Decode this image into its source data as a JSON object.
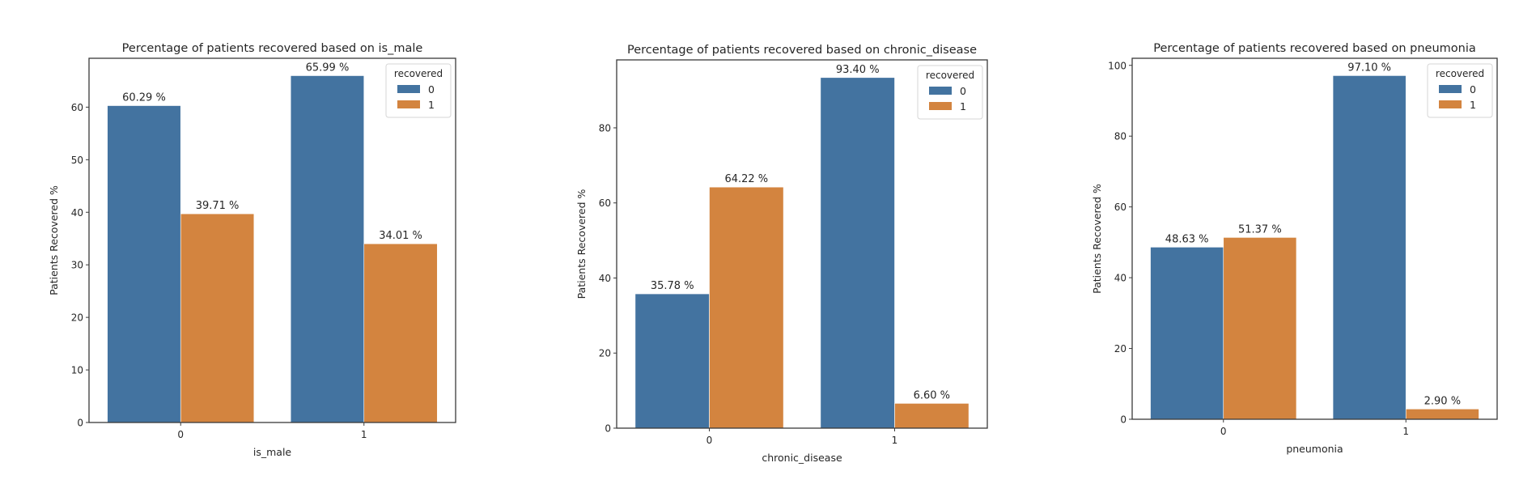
{
  "colors": {
    "series_0": "#4373a0",
    "series_1": "#d3843f",
    "axis": "#3a3a3a",
    "text": "#262626",
    "background": "#ffffff"
  },
  "chart_data": [
    {
      "type": "bar",
      "title": "Percentage of patients recovered based on is_male",
      "xlabel": "is_male",
      "ylabel": "Patients Recovered %",
      "categories": [
        "0",
        "1"
      ],
      "ylim": [
        0,
        69.3
      ],
      "yticks": [
        0,
        10,
        20,
        30,
        40,
        50,
        60
      ],
      "legend": {
        "title": "recovered",
        "position": "top-right"
      },
      "grid": false,
      "series": [
        {
          "name": "0",
          "values": [
            60.29,
            65.99
          ],
          "labels": [
            "60.29 %",
            "65.99 %"
          ]
        },
        {
          "name": "1",
          "values": [
            39.71,
            34.01
          ],
          "labels": [
            "39.71 %",
            "34.01 %"
          ]
        }
      ]
    },
    {
      "type": "bar",
      "title": "Percentage of patients recovered based on chronic_disease",
      "xlabel": "chronic_disease",
      "ylabel": "Patients Recovered %",
      "categories": [
        "0",
        "1"
      ],
      "ylim": [
        0,
        98.1
      ],
      "yticks": [
        0,
        20,
        40,
        60,
        80
      ],
      "legend": {
        "title": "recovered",
        "position": "top-right"
      },
      "grid": false,
      "series": [
        {
          "name": "0",
          "values": [
            35.78,
            93.4
          ],
          "labels": [
            "35.78 %",
            "93.40 %"
          ]
        },
        {
          "name": "1",
          "values": [
            64.22,
            6.6
          ],
          "labels": [
            "64.22 %",
            "6.60 %"
          ]
        }
      ]
    },
    {
      "type": "bar",
      "title": "Percentage of patients recovered based on pneumonia",
      "xlabel": "pneumonia",
      "ylabel": "Patients Recovered %",
      "categories": [
        "0",
        "1"
      ],
      "ylim": [
        0,
        102.0
      ],
      "yticks": [
        0,
        20,
        40,
        60,
        80,
        100
      ],
      "legend": {
        "title": "recovered",
        "position": "top-right"
      },
      "grid": false,
      "series": [
        {
          "name": "0",
          "values": [
            48.63,
            97.1
          ],
          "labels": [
            "48.63 %",
            "97.10 %"
          ]
        },
        {
          "name": "1",
          "values": [
            51.37,
            2.9
          ],
          "labels": [
            "51.37 %",
            "2.90 %"
          ]
        }
      ]
    }
  ]
}
